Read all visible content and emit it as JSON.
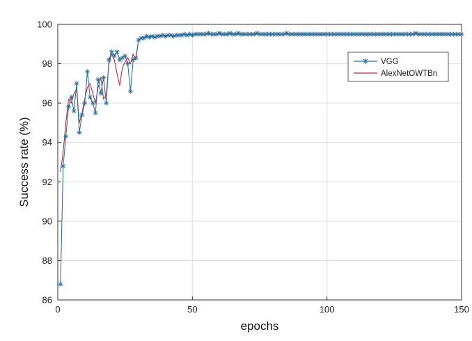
{
  "chart_data": {
    "type": "line",
    "xlabel": "epochs",
    "ylabel": "Success rate (%)",
    "xlim": [
      0,
      150
    ],
    "ylim": [
      86,
      100
    ],
    "xticks": [
      0,
      50,
      100,
      150
    ],
    "yticks": [
      86,
      88,
      90,
      92,
      94,
      96,
      98,
      100
    ],
    "grid": true,
    "legend_position": "top-right",
    "colors": {
      "VGG": "#2f6f9f",
      "AlexNetOWTBn": "#c0283a"
    },
    "series": [
      {
        "name": "VGG",
        "marker": "asterisk",
        "x": [
          1,
          2,
          3,
          4,
          5,
          6,
          7,
          8,
          9,
          10,
          11,
          12,
          13,
          14,
          15,
          16,
          17,
          18,
          19,
          20,
          21,
          22,
          23,
          24,
          25,
          26,
          27,
          28,
          29,
          30,
          31,
          32,
          33,
          34,
          35,
          36,
          37,
          38,
          39,
          40,
          41,
          42,
          43,
          44,
          45,
          46,
          47,
          48,
          49,
          50,
          51,
          52,
          53,
          54,
          55,
          56,
          57,
          58,
          59,
          60,
          61,
          62,
          63,
          64,
          65,
          66,
          67,
          68,
          69,
          70,
          71,
          72,
          73,
          74,
          75,
          76,
          77,
          78,
          79,
          80,
          81,
          82,
          83,
          84,
          85,
          86,
          87,
          88,
          89,
          90,
          91,
          92,
          93,
          94,
          95,
          96,
          97,
          98,
          99,
          100,
          101,
          102,
          103,
          104,
          105,
          106,
          107,
          108,
          109,
          110,
          111,
          112,
          113,
          114,
          115,
          116,
          117,
          118,
          119,
          120,
          121,
          122,
          123,
          124,
          125,
          126,
          127,
          128,
          129,
          130,
          131,
          132,
          133,
          134,
          135,
          136,
          137,
          138,
          139,
          140,
          141,
          142,
          143,
          144,
          145,
          146,
          147,
          148,
          149,
          150
        ],
        "y": [
          86.8,
          92.8,
          94.3,
          95.8,
          96.3,
          95.6,
          97.0,
          94.5,
          95.4,
          96.0,
          97.6,
          96.3,
          96.0,
          95.5,
          97.2,
          96.5,
          97.3,
          96.0,
          98.2,
          98.6,
          98.4,
          98.6,
          98.2,
          98.3,
          98.4,
          98.0,
          96.6,
          98.2,
          98.3,
          99.2,
          99.3,
          99.3,
          99.4,
          99.35,
          99.4,
          99.35,
          99.4,
          99.4,
          99.45,
          99.4,
          99.45,
          99.45,
          99.4,
          99.45,
          99.45,
          99.45,
          99.5,
          99.45,
          99.5,
          99.45,
          99.5,
          99.5,
          99.5,
          99.5,
          99.5,
          99.55,
          99.5,
          99.5,
          99.5,
          99.55,
          99.5,
          99.5,
          99.5,
          99.55,
          99.5,
          99.5,
          99.55,
          99.5,
          99.5,
          99.5,
          99.5,
          99.5,
          99.5,
          99.55,
          99.5,
          99.5,
          99.5,
          99.5,
          99.5,
          99.5,
          99.5,
          99.5,
          99.5,
          99.5,
          99.55,
          99.5,
          99.5,
          99.5,
          99.5,
          99.5,
          99.5,
          99.5,
          99.5,
          99.5,
          99.5,
          99.5,
          99.5,
          99.5,
          99.5,
          99.5,
          99.5,
          99.5,
          99.5,
          99.5,
          99.5,
          99.5,
          99.5,
          99.5,
          99.5,
          99.5,
          99.5,
          99.5,
          99.5,
          99.5,
          99.5,
          99.5,
          99.5,
          99.5,
          99.5,
          99.5,
          99.5,
          99.5,
          99.5,
          99.5,
          99.5,
          99.5,
          99.5,
          99.5,
          99.5,
          99.5,
          99.5,
          99.5,
          99.55,
          99.5,
          99.5,
          99.5,
          99.5,
          99.5,
          99.5,
          99.5,
          99.5,
          99.5,
          99.5,
          99.5,
          99.5,
          99.5,
          99.5,
          99.5,
          99.5,
          99.5
        ]
      },
      {
        "name": "AlexNetOWTBn",
        "marker": "none",
        "x": [
          1,
          2,
          3,
          4,
          5,
          6,
          7,
          8,
          9,
          10,
          11,
          12,
          13,
          14,
          15,
          16,
          17,
          18,
          19,
          20,
          21,
          22,
          23,
          24,
          25,
          26,
          27,
          28,
          29,
          30,
          31,
          32,
          33,
          34,
          35,
          36,
          37,
          38,
          39,
          40,
          41,
          42,
          43,
          44,
          45,
          46,
          47,
          48,
          49,
          50,
          60,
          70,
          80,
          90,
          100,
          110,
          120,
          130,
          140,
          150
        ],
        "y": [
          92.5,
          93.5,
          95.0,
          96.2,
          96.0,
          96.5,
          96.7,
          95.0,
          95.5,
          96.2,
          96.8,
          97.0,
          96.5,
          96.0,
          96.8,
          97.3,
          96.2,
          96.4,
          98.0,
          98.5,
          98.2,
          97.5,
          96.9,
          97.8,
          98.1,
          98.3,
          98.0,
          98.5,
          98.2,
          99.2,
          99.3,
          99.35,
          99.35,
          99.4,
          99.4,
          99.4,
          99.4,
          99.45,
          99.45,
          99.45,
          99.45,
          99.45,
          99.45,
          99.45,
          99.45,
          99.5,
          99.5,
          99.5,
          99.5,
          99.5,
          99.5,
          99.5,
          99.5,
          99.5,
          99.5,
          99.5,
          99.5,
          99.5,
          99.5,
          99.5
        ]
      }
    ]
  }
}
